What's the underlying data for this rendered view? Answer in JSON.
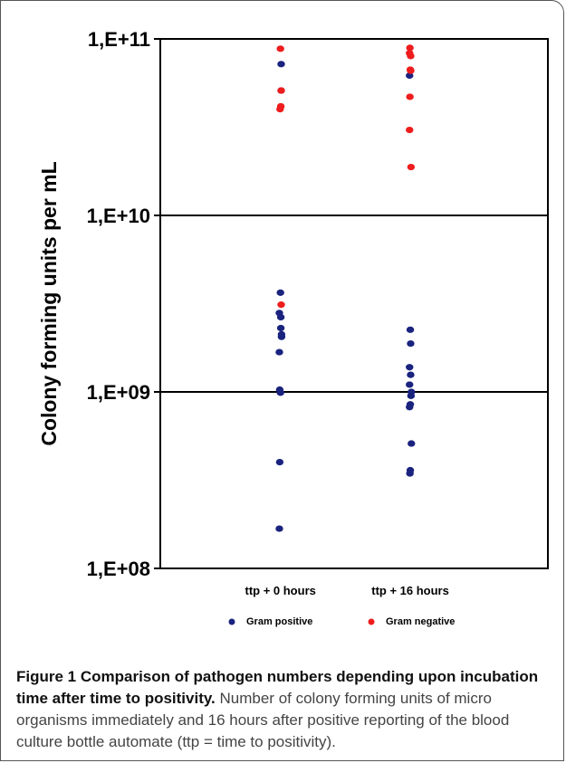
{
  "chart_data": {
    "type": "scatter",
    "ylabel": "Colony forming units per mL",
    "y_scale": "log",
    "ylim": [
      100000000,
      100000000000
    ],
    "y_ticks": [
      "1,E+08",
      "1,E+09",
      "1,E+10",
      "1,E+11"
    ],
    "y_tick_values": [
      100000000,
      1000000000,
      10000000000,
      100000000000
    ],
    "categories": [
      "ttp + 0 hours",
      "ttp + 16 hours"
    ],
    "grid": "horizontal major gridlines",
    "legend_position": "bottom",
    "series": [
      {
        "name": "Gram positive",
        "color": "#1a237e",
        "points": [
          {
            "x": "ttp + 0 hours",
            "y": 72000000000
          },
          {
            "x": "ttp + 0 hours",
            "y": 51000000000
          },
          {
            "x": "ttp + 0 hours",
            "y": 3650000000
          },
          {
            "x": "ttp + 0 hours",
            "y": 2800000000
          },
          {
            "x": "ttp + 0 hours",
            "y": 2650000000
          },
          {
            "x": "ttp + 0 hours",
            "y": 2300000000
          },
          {
            "x": "ttp + 0 hours",
            "y": 2120000000
          },
          {
            "x": "ttp + 0 hours",
            "y": 2050000000
          },
          {
            "x": "ttp + 0 hours",
            "y": 1680000000
          },
          {
            "x": "ttp + 0 hours",
            "y": 1030000000
          },
          {
            "x": "ttp + 0 hours",
            "y": 990000000
          },
          {
            "x": "ttp + 0 hours",
            "y": 400000000
          },
          {
            "x": "ttp + 0 hours",
            "y": 168000000
          },
          {
            "x": "ttp + 16 hours",
            "y": 62000000000
          },
          {
            "x": "ttp + 16 hours",
            "y": 2250000000
          },
          {
            "x": "ttp + 16 hours",
            "y": 1880000000
          },
          {
            "x": "ttp + 16 hours",
            "y": 1380000000
          },
          {
            "x": "ttp + 16 hours",
            "y": 1250000000
          },
          {
            "x": "ttp + 16 hours",
            "y": 1100000000
          },
          {
            "x": "ttp + 16 hours",
            "y": 1000000000
          },
          {
            "x": "ttp + 16 hours",
            "y": 950000000
          },
          {
            "x": "ttp + 16 hours",
            "y": 850000000
          },
          {
            "x": "ttp + 16 hours",
            "y": 820000000
          },
          {
            "x": "ttp + 16 hours",
            "y": 510000000
          },
          {
            "x": "ttp + 16 hours",
            "y": 360000000
          },
          {
            "x": "ttp + 16 hours",
            "y": 345000000
          }
        ]
      },
      {
        "name": "Gram negative",
        "color": "#ee1c1c",
        "points": [
          {
            "x": "ttp + 0 hours",
            "y": 88000000000
          },
          {
            "x": "ttp + 0 hours",
            "y": 51000000000
          },
          {
            "x": "ttp + 0 hours",
            "y": 41500000000
          },
          {
            "x": "ttp + 0 hours",
            "y": 40000000000
          },
          {
            "x": "ttp + 0 hours",
            "y": 3120000000
          },
          {
            "x": "ttp + 16 hours",
            "y": 89000000000
          },
          {
            "x": "ttp + 16 hours",
            "y": 83000000000
          },
          {
            "x": "ttp + 16 hours",
            "y": 80000000000
          },
          {
            "x": "ttp + 16 hours",
            "y": 67000000000
          },
          {
            "x": "ttp + 16 hours",
            "y": 66000000000
          },
          {
            "x": "ttp + 16 hours",
            "y": 47000000000
          },
          {
            "x": "ttp + 16 hours",
            "y": 30500000000
          },
          {
            "x": "ttp + 16 hours",
            "y": 18800000000
          }
        ]
      }
    ]
  },
  "caption": {
    "title": "Figure 1 Comparison of pathogen numbers depending upon incubation time after time to positivity.",
    "body": " Number of colony forming units of micro organisms immediately and 16 hours after positive reporting of the blood culture bottle automate (ttp = time to positivity)."
  }
}
